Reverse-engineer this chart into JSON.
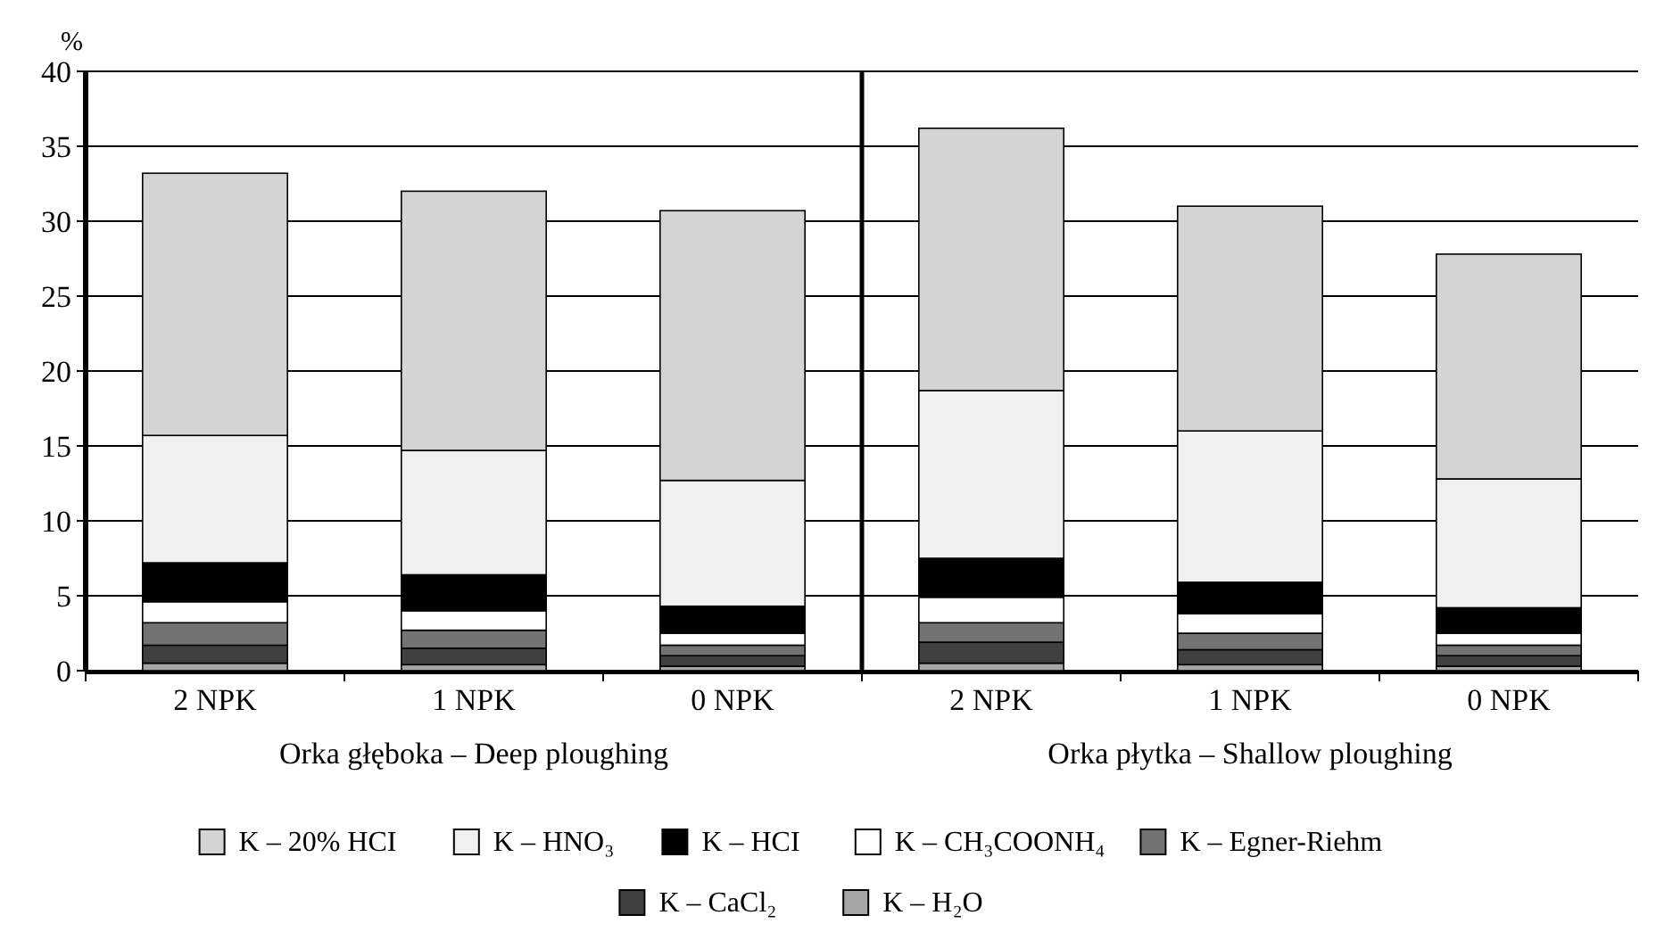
{
  "chart_data": [
    {
      "type": "bar",
      "stacked": true,
      "ylabel": "%",
      "xlabel": "Orka głęboka – Deep ploughing",
      "categories": [
        "2 NPK",
        "1 NPK",
        "0 NPK"
      ],
      "ylim": [
        0,
        40
      ],
      "yticks": [
        0,
        5,
        10,
        15,
        20,
        25,
        30,
        35,
        40
      ],
      "grid": "y",
      "legend": "bottom",
      "series": [
        {
          "name": "K – H₂O",
          "color": "#a6a6a6",
          "values": [
            0.5,
            0.4,
            0.3
          ]
        },
        {
          "name": "K – CaCl₂",
          "color": "#404040",
          "values": [
            1.2,
            1.1,
            0.7
          ]
        },
        {
          "name": "K – Egner-Riehm",
          "color": "#737373",
          "values": [
            1.5,
            1.2,
            0.7
          ]
        },
        {
          "name": "K – CH₃COONH₄",
          "color": "#ffffff",
          "values": [
            1.4,
            1.3,
            0.8
          ]
        },
        {
          "name": "K – HCI",
          "color": "#000000",
          "values": [
            2.6,
            2.4,
            1.8
          ]
        },
        {
          "name": "K – HNO₃",
          "color": "#f0f0f0",
          "values": [
            8.5,
            8.3,
            8.4
          ]
        },
        {
          "name": "K – 20% HCI",
          "color": "#d4d4d4",
          "values": [
            17.5,
            17.3,
            18.0
          ]
        }
      ]
    },
    {
      "type": "bar",
      "stacked": true,
      "xlabel": "Orka płytka – Shallow ploughing",
      "categories": [
        "2 NPK",
        "1 NPK",
        "0 NPK"
      ],
      "ylim": [
        0,
        40
      ],
      "grid": "y",
      "tick_labels": "x",
      "series": [
        {
          "color": "#a6a6a6",
          "values": [
            0.5,
            0.4,
            0.3
          ]
        },
        {
          "color": "#404040",
          "values": [
            1.4,
            1.0,
            0.7
          ]
        },
        {
          "color": "#737373",
          "values": [
            1.3,
            1.1,
            0.7
          ]
        },
        {
          "color": "#ffffff",
          "values": [
            1.7,
            1.3,
            0.8
          ]
        },
        {
          "color": "#000000",
          "values": [
            2.6,
            2.1,
            1.7
          ]
        },
        {
          "color": "#f0f0f0",
          "values": [
            11.2,
            10.1,
            8.6
          ]
        },
        {
          "color": "#d4d4d4",
          "values": [
            17.5,
            15.0,
            15.0
          ]
        }
      ]
    }
  ]
}
